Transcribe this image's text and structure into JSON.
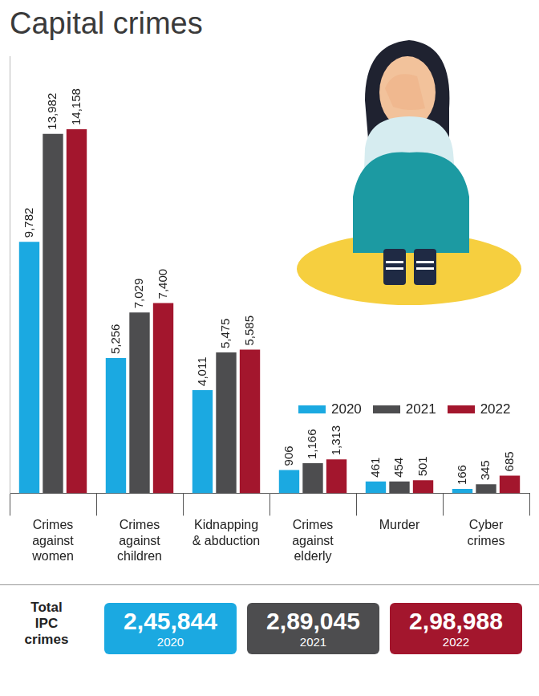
{
  "chart_data": {
    "type": "bar",
    "title": "Capital crimes",
    "categories": [
      "Crimes against women",
      "Crimes against children",
      "Kidnapping & abduction",
      "Crimes against elderly",
      "Murder",
      "Cyber crimes"
    ],
    "series": [
      {
        "name": "2020",
        "color": "#1ba9e1",
        "values": [
          9782,
          5256,
          4011,
          906,
          461,
          166
        ],
        "value_labels": [
          "9,782",
          "5,256",
          "4,011",
          "906",
          "461",
          "166"
        ]
      },
      {
        "name": "2021",
        "color": "#4d4d4f",
        "values": [
          13982,
          7029,
          5475,
          1166,
          454,
          345
        ],
        "value_labels": [
          "13,982",
          "7,029",
          "5,475",
          "1,166",
          "454",
          "345"
        ]
      },
      {
        "name": "2022",
        "color": "#a3162d",
        "values": [
          14158,
          7400,
          5585,
          1313,
          501,
          685
        ],
        "value_labels": [
          "14,158",
          "7,400",
          "5,585",
          "1,313",
          "501",
          "685"
        ]
      }
    ],
    "ylim": [
      0,
      17000
    ],
    "grid": false,
    "legend": "right",
    "data_labels": true,
    "tick_labels": "x"
  },
  "totals": {
    "label": "Total IPC crimes",
    "items": [
      {
        "value": "2,45,844",
        "year": "2020",
        "color": "#1ba9e1"
      },
      {
        "value": "2,89,045",
        "year": "2021",
        "color": "#4d4d4f"
      },
      {
        "value": "2,98,988",
        "year": "2022",
        "color": "#a3162d"
      }
    ]
  }
}
